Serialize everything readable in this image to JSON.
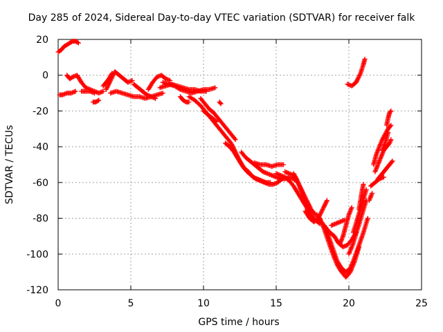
{
  "chart_data": {
    "type": "scatter",
    "title": "Day 285 of 2024, Sidereal Day-to-day VTEC variation (SDTVAR) for receiver falk",
    "xlabel": "GPS time / hours",
    "ylabel": "SDTVAR / TECUs",
    "xlim": [
      0,
      25
    ],
    "ylim": [
      -120,
      20
    ],
    "xticks": [
      0,
      5,
      10,
      15,
      20,
      25
    ],
    "yticks": [
      20,
      0,
      -20,
      -40,
      -60,
      -80,
      -100,
      -120
    ],
    "grid": true,
    "marker": "plus",
    "color": "#ff0000",
    "series": [
      {
        "x": [
          0.0,
          0.2,
          0.4,
          0.6,
          0.8,
          1.0,
          1.2,
          1.4
        ],
        "y": [
          13,
          14,
          16,
          17,
          18,
          19,
          19,
          18
        ]
      },
      {
        "x": [
          0.1,
          0.3,
          0.6,
          0.9,
          1.2
        ],
        "y": [
          -11,
          -11,
          -10,
          -10,
          -9
        ]
      },
      {
        "x": [
          0.6,
          0.8,
          1.0,
          1.3,
          1.6,
          1.9,
          2.2,
          2.5,
          2.8,
          3.1
        ],
        "y": [
          0,
          -2,
          -1,
          0,
          -4,
          -7,
          -8,
          -9,
          -10,
          -9
        ]
      },
      {
        "x": [
          1.6,
          1.9,
          2.2,
          2.5
        ],
        "y": [
          -9,
          -9,
          -9,
          -10
        ]
      },
      {
        "x": [
          2.4,
          2.6,
          2.8
        ],
        "y": [
          -15,
          -15,
          -14
        ]
      },
      {
        "x": [
          3.1,
          3.3,
          3.5,
          3.7
        ],
        "y": [
          -6,
          -4,
          -2,
          1
        ]
      },
      {
        "x": [
          3.3,
          3.6,
          3.9,
          4.2,
          4.5,
          4.8,
          5.1
        ],
        "y": [
          -8,
          -3,
          2,
          0,
          -2,
          -4,
          -3
        ]
      },
      {
        "x": [
          3.6,
          4.0,
          4.4,
          4.8,
          5.2,
          5.6,
          6.0,
          6.4,
          6.8,
          7.2
        ],
        "y": [
          -10,
          -9,
          -10,
          -11,
          -12,
          -12,
          -13,
          -12,
          -11,
          -10
        ]
      },
      {
        "x": [
          5.2,
          5.5,
          5.8,
          6.1,
          6.4,
          6.7
        ],
        "y": [
          -5,
          -7,
          -9,
          -11,
          -12,
          -13
        ]
      },
      {
        "x": [
          6.2,
          6.5,
          6.8,
          7.1,
          7.4,
          7.7
        ],
        "y": [
          -8,
          -4,
          -1,
          0,
          -2,
          -3
        ]
      },
      {
        "x": [
          7.0,
          7.4,
          7.8,
          8.2,
          8.6,
          9.0,
          9.4,
          9.8,
          10.2
        ],
        "y": [
          -7,
          -6,
          -5,
          -6,
          -7,
          -8,
          -8,
          -9,
          -9
        ]
      },
      {
        "x": [
          7.2,
          7.6,
          8.0,
          8.4,
          8.8,
          9.2,
          9.6,
          10.0,
          10.4,
          10.8
        ],
        "y": [
          -4,
          -5,
          -6,
          -8,
          -9,
          -10,
          -9,
          -8,
          -8,
          -7
        ]
      },
      {
        "x": [
          8.4,
          8.6,
          8.8,
          9.0
        ],
        "y": [
          -12,
          -14,
          -15,
          -15
        ]
      },
      {
        "x": [
          9.0,
          9.4,
          9.8,
          10.1,
          10.4,
          10.7,
          11.0,
          11.3,
          11.6,
          11.9,
          12.2,
          12.5,
          12.8,
          13.1,
          13.4,
          13.7,
          14.0,
          14.3,
          14.6
        ],
        "y": [
          -12,
          -14,
          -17,
          -20,
          -23,
          -26,
          -29,
          -32,
          -35,
          -38,
          -43,
          -48,
          -52,
          -54,
          -57,
          -58,
          -59,
          -60,
          -60
        ]
      },
      {
        "x": [
          9.8,
          10.1,
          10.4,
          10.7,
          11.0,
          11.3,
          11.6,
          11.9,
          12.2
        ],
        "y": [
          -13,
          -16,
          -19,
          -21,
          -24,
          -27,
          -30,
          -33,
          -36
        ]
      },
      {
        "x": [
          10.0,
          10.3,
          10.6,
          10.9
        ],
        "y": [
          -20,
          -22,
          -24,
          -26
        ]
      },
      {
        "x": [
          11.1,
          11.2
        ],
        "y": [
          -15,
          -16
        ]
      },
      {
        "x": [
          11.5,
          11.8,
          12.1,
          12.4,
          12.7,
          13.0,
          13.3,
          13.6,
          13.9,
          14.2,
          14.5,
          14.8,
          15.1,
          15.4
        ],
        "y": [
          -38,
          -40,
          -43,
          -47,
          -51,
          -54,
          -56,
          -58,
          -59,
          -60,
          -61,
          -61,
          -60,
          -58
        ]
      },
      {
        "x": [
          12.6,
          12.9,
          13.2,
          13.5,
          13.8,
          14.1,
          14.4,
          14.7,
          15.0,
          15.3,
          15.6,
          15.9,
          16.2,
          16.5
        ],
        "y": [
          -43,
          -46,
          -48,
          -50,
          -52,
          -54,
          -55,
          -56,
          -57,
          -58,
          -58,
          -57,
          -58,
          -60
        ]
      },
      {
        "x": [
          13.5,
          13.9,
          14.3,
          14.7,
          15.1,
          15.5
        ],
        "y": [
          -49,
          -50,
          -50,
          -51,
          -50,
          -50
        ]
      },
      {
        "x": [
          15.0,
          15.3,
          15.6,
          15.9,
          16.2,
          16.5,
          16.8,
          17.1,
          17.4,
          17.7,
          18.0
        ],
        "y": [
          -55,
          -56,
          -57,
          -59,
          -62,
          -66,
          -70,
          -74,
          -78,
          -81,
          -83
        ]
      },
      {
        "x": [
          15.6,
          15.9,
          16.2,
          16.5,
          16.8,
          17.1,
          17.4,
          17.7
        ],
        "y": [
          -54,
          -55,
          -56,
          -60,
          -65,
          -70,
          -75,
          -78
        ]
      },
      {
        "x": [
          16.2,
          16.4,
          16.6,
          16.8,
          17.0,
          17.2
        ],
        "y": [
          -55,
          -58,
          -62,
          -66,
          -70,
          -74
        ]
      },
      {
        "x": [
          17.0,
          17.3,
          17.6,
          17.9,
          18.2,
          18.5
        ],
        "y": [
          -76,
          -80,
          -82,
          -80,
          -75,
          -70
        ]
      },
      {
        "x": [
          17.8,
          18.1,
          18.4,
          18.7,
          19.0,
          19.3,
          19.6,
          19.9,
          20.2,
          20.5
        ],
        "y": [
          -78,
          -82,
          -85,
          -88,
          -90,
          -94,
          -96,
          -95,
          -92,
          -88
        ]
      },
      {
        "x": [
          18.0,
          18.3,
          18.6,
          18.9,
          19.2,
          19.5,
          19.8,
          20.1,
          20.4,
          20.7
        ],
        "y": [
          -80,
          -86,
          -93,
          -100,
          -106,
          -110,
          -113,
          -110,
          -104,
          -96
        ]
      },
      {
        "x": [
          18.3,
          18.6,
          18.9,
          19.2,
          19.5,
          19.8,
          20.1,
          20.4,
          20.7,
          21.0,
          21.3
        ],
        "y": [
          -84,
          -90,
          -97,
          -104,
          -108,
          -110,
          -108,
          -102,
          -95,
          -88,
          -80
        ]
      },
      {
        "x": [
          18.8,
          19.1,
          19.4,
          19.7
        ],
        "y": [
          -84,
          -83,
          -82,
          -81
        ]
      },
      {
        "x": [
          19.4,
          19.6,
          19.8,
          20.0,
          20.2
        ],
        "y": [
          -94,
          -90,
          -84,
          -78,
          -74
        ]
      },
      {
        "x": [
          20.0,
          20.3,
          20.6,
          20.9,
          21.2
        ],
        "y": [
          -100,
          -94,
          -86,
          -78,
          -70
        ]
      },
      {
        "x": [
          20.3,
          20.6,
          20.9,
          21.2
        ],
        "y": [
          -88,
          -80,
          -72,
          -64
        ]
      },
      {
        "x": [
          20.7,
          20.8,
          20.9,
          21.0
        ],
        "y": [
          -75,
          -70,
          -65,
          -61
        ]
      },
      {
        "x": [
          19.9,
          20.2,
          20.5,
          20.8,
          21.0,
          21.1
        ],
        "y": [
          -5,
          -6,
          -4,
          1,
          6,
          9
        ]
      },
      {
        "x": [
          21.4,
          21.6
        ],
        "y": [
          -70,
          -66
        ]
      },
      {
        "x": [
          21.5,
          21.8,
          22.1,
          22.4
        ],
        "y": [
          -62,
          -60,
          -58,
          -57
        ]
      },
      {
        "x": [
          21.7,
          21.9,
          22.1,
          22.3,
          22.5,
          22.7,
          22.9
        ],
        "y": [
          -50,
          -44,
          -40,
          -36,
          -33,
          -30,
          -28
        ]
      },
      {
        "x": [
          21.8,
          22.0,
          22.2,
          22.4,
          22.6,
          22.8,
          22.9
        ],
        "y": [
          -54,
          -50,
          -46,
          -42,
          -40,
          -38,
          -36
        ]
      },
      {
        "x": [
          22.0,
          22.2,
          22.4,
          22.6,
          22.8,
          23.0
        ],
        "y": [
          -58,
          -56,
          -54,
          -52,
          -50,
          -48
        ]
      },
      {
        "x": [
          22.3,
          22.5,
          22.7
        ],
        "y": [
          -42,
          -38,
          -32
        ]
      },
      {
        "x": [
          22.6,
          22.7,
          22.8,
          22.9
        ],
        "y": [
          -28,
          -24,
          -21,
          -20
        ]
      }
    ]
  }
}
